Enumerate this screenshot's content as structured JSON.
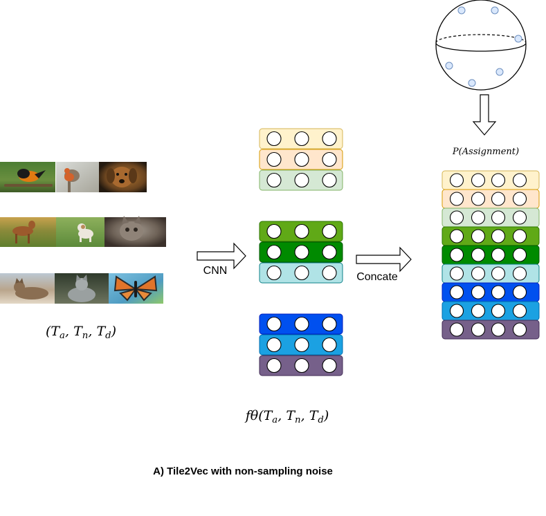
{
  "labels": {
    "cnn": "CNN",
    "concate": "Concate",
    "input_triplet": "(T_a, T_n, T_d)",
    "embedding": "f_θ(T_a, T_n, T_d)",
    "assignment": "P(Assignment)",
    "caption": "A) Tile2Vec with non-sampling noise"
  },
  "image_rows": [
    {
      "images": [
        {
          "name": "oriole-bird-photo",
          "subject": "oriole bird on branch",
          "palette": [
            "#3f6b2a",
            "#e07a12",
            "#1b1b1b"
          ]
        },
        {
          "name": "robin-bird-photo",
          "subject": "robin on post",
          "palette": [
            "#c9ccc8",
            "#d4622a",
            "#7a6a57"
          ]
        },
        {
          "name": "puppy-photo",
          "subject": "brown puppy",
          "palette": [
            "#2e2418",
            "#a8692f",
            "#6b4520"
          ]
        }
      ]
    },
    {
      "images": [
        {
          "name": "dog-on-grass-photo",
          "subject": "dog on grass",
          "palette": [
            "#6f8a3a",
            "#9c5a2c",
            "#c9a75a"
          ]
        },
        {
          "name": "running-kitten-photo",
          "subject": "kitten running on grass",
          "palette": [
            "#6a9a4a",
            "#e9e4da",
            "#a8b27a"
          ]
        },
        {
          "name": "tabby-kitten-photo",
          "subject": "tabby kitten close-up",
          "palette": [
            "#5c5046",
            "#9a8f85",
            "#3a302a"
          ]
        }
      ]
    },
    {
      "images": [
        {
          "name": "tabby-cat-lying-photo",
          "subject": "tabby cat lying",
          "palette": [
            "#b9c5cf",
            "#8a6e52",
            "#d7ccbb"
          ]
        },
        {
          "name": "grey-cat-photo",
          "subject": "grey cat sitting",
          "palette": [
            "#3d4638",
            "#9aa0a0",
            "#6d745e"
          ]
        },
        {
          "name": "monarch-butterfly-photo",
          "subject": "monarch butterfly",
          "palette": [
            "#6ab0d4",
            "#e0742a",
            "#2a2a2a"
          ]
        }
      ]
    }
  ],
  "vector_groups": [
    {
      "name": "vector-group-anchor",
      "rows": [
        {
          "fill": "#fff2cc",
          "stroke": "#d6b656"
        },
        {
          "fill": "#ffe6cc",
          "stroke": "#d79b00"
        },
        {
          "fill": "#d5e8d4",
          "stroke": "#82b366"
        }
      ]
    },
    {
      "name": "vector-group-neighbor",
      "rows": [
        {
          "fill": "#60a917",
          "stroke": "#2d7600"
        },
        {
          "fill": "#008a00",
          "stroke": "#005700"
        },
        {
          "fill": "#b0e3e6",
          "stroke": "#0e8088"
        }
      ]
    },
    {
      "name": "vector-group-distant",
      "rows": [
        {
          "fill": "#0050ef",
          "stroke": "#001dbc"
        },
        {
          "fill": "#1ba1e2",
          "stroke": "#006eaf"
        },
        {
          "fill": "#76608a",
          "stroke": "#432d57"
        }
      ]
    }
  ],
  "concat_rows": [
    {
      "fill": "#fff2cc",
      "stroke": "#d6b656"
    },
    {
      "fill": "#ffe6cc",
      "stroke": "#d79b00"
    },
    {
      "fill": "#d5e8d4",
      "stroke": "#82b366"
    },
    {
      "fill": "#60a917",
      "stroke": "#2d7600"
    },
    {
      "fill": "#008a00",
      "stroke": "#005700"
    },
    {
      "fill": "#b0e3e6",
      "stroke": "#0e8088"
    },
    {
      "fill": "#0050ef",
      "stroke": "#001dbc"
    },
    {
      "fill": "#1ba1e2",
      "stroke": "#006eaf"
    },
    {
      "fill": "#76608a",
      "stroke": "#432d57"
    }
  ],
  "sphere": {
    "fill": "#ffffff",
    "stroke": "#000000",
    "point_fill": "#dae8fc",
    "point_stroke": "#6c8ebf"
  }
}
